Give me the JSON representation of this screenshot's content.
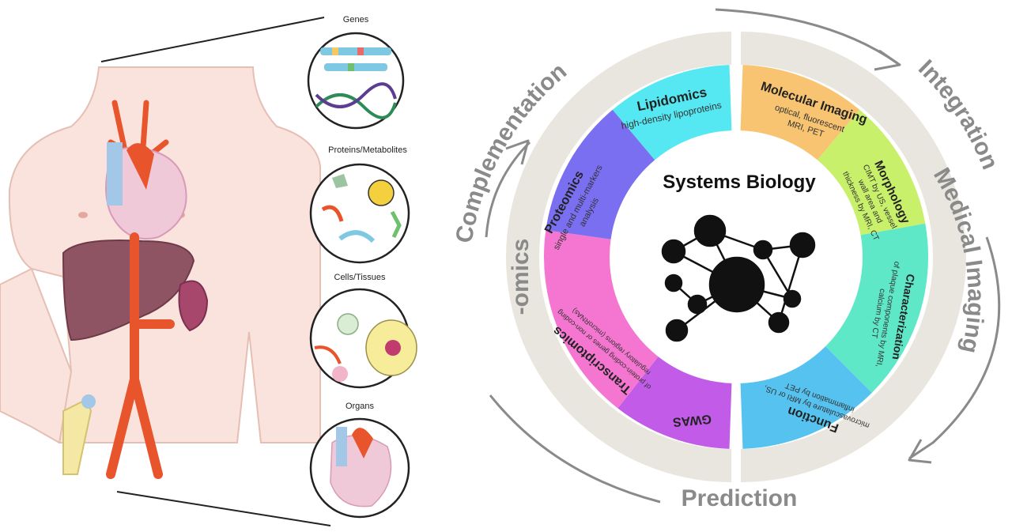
{
  "scales": {
    "genes": "Genes",
    "proteins": "Proteins/Metabolites",
    "cells": "Cells/Tissues",
    "organs": "Organs"
  },
  "center": {
    "title": "Systems Biology"
  },
  "ring_labels": {
    "top": "Complementation",
    "right_top": "Integration",
    "right": "Medical Imaging",
    "bottom": "Prediction",
    "left": "-omics"
  },
  "segments": {
    "lipidomics": {
      "title": "Lipidomics",
      "sub": "high-density lipoproteins"
    },
    "molecular": {
      "title": "Molecular Imaging",
      "sub1": "optical, fluorescent",
      "sub2": "MRI, PET"
    },
    "morphology": {
      "title": "Morphology",
      "sub1": "CIMT by US, vessel",
      "sub2": "wall area and",
      "sub3": "thickness by MRI, CT"
    },
    "characterization": {
      "title": "Characterization",
      "sub1": "of plaque components by MRI,",
      "sub2": "calcium by CT"
    },
    "function": {
      "title": "Function",
      "sub1": "microvasculature by MRI or US,",
      "sub2": "inflammation by PET"
    },
    "gwas": {
      "title": "GWAS"
    },
    "transcriptomics": {
      "title": "Transcriptomics",
      "sub1": "of protein-coding genes or non-coding",
      "sub2": "regulatory regions (microRNAs)"
    },
    "proteomics": {
      "title": "Proteomics",
      "sub1": "single and multi-markers",
      "sub2": "analysis"
    }
  },
  "colors": {
    "lipidomics": "#55e8f2",
    "molecular": "#f8c471",
    "morphology": "#c8f06a",
    "characterization": "#5ee8c8",
    "function": "#56c2f0",
    "gwas": "#c25ce8",
    "transcriptomics": "#f576d0",
    "proteomics": "#7a6ff0",
    "ring": "#e8e6de",
    "label": "#8a8a8a"
  }
}
